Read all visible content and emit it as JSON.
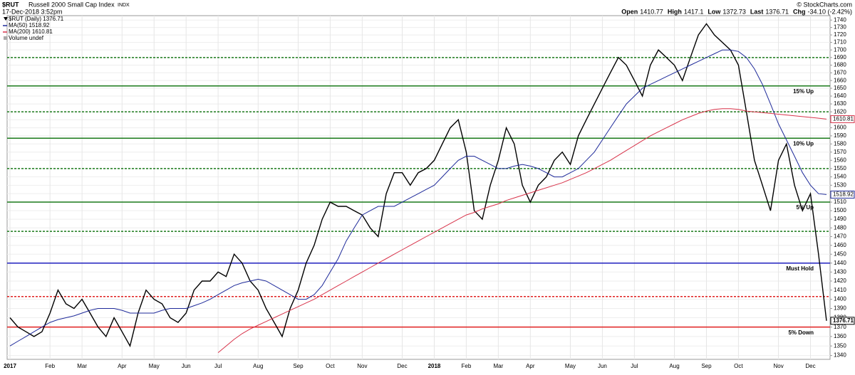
{
  "header": {
    "symbol": "$RUT",
    "name": "Russell 2000 Small Cap Index",
    "exchange": "INDX",
    "date": "17-Dec-2018 3:52pm",
    "source": "© StockCharts.com",
    "quote": [
      {
        "label": "Open",
        "value": 1410.77
      },
      {
        "label": "High",
        "value": 1417.1
      },
      {
        "label": "Low",
        "value": 1372.73
      },
      {
        "label": "Last",
        "value": 1376.71
      },
      {
        "label": "Chg",
        "value": "-34.10 (-2.42%)"
      }
    ]
  },
  "chart_data": {
    "type": "line",
    "log_scale": true,
    "grid": true,
    "legend_extra": "Volume undef",
    "categories": [
      "2017",
      null,
      null,
      null,
      null,
      "Feb",
      null,
      null,
      null,
      "Mar",
      null,
      null,
      null,
      null,
      "Apr",
      null,
      null,
      null,
      "May",
      null,
      null,
      null,
      "Jun",
      null,
      null,
      null,
      "Jul",
      null,
      null,
      null,
      null,
      "Aug",
      null,
      null,
      null,
      null,
      "Sep",
      null,
      null,
      null,
      "Oct",
      null,
      null,
      null,
      "Nov",
      null,
      null,
      null,
      null,
      "Dec",
      null,
      null,
      null,
      "2018",
      null,
      null,
      null,
      "Feb",
      null,
      null,
      null,
      "Mar",
      null,
      null,
      null,
      "Apr",
      null,
      null,
      null,
      null,
      "May",
      null,
      null,
      null,
      "Jun",
      null,
      null,
      null,
      "Jul",
      null,
      null,
      null,
      null,
      "Aug",
      null,
      null,
      null,
      "Sep",
      null,
      null,
      null,
      "Oct",
      null,
      null,
      null,
      null,
      "Nov",
      null,
      null,
      null,
      "Dec",
      null,
      null
    ],
    "series": [
      {
        "name": "$RUT (Daily) 1376.71",
        "color": "#000000",
        "values": [
          1380,
          1370,
          1365,
          1360,
          1365,
          1385,
          1410,
          1395,
          1390,
          1400,
          1385,
          1370,
          1360,
          1380,
          1365,
          1350,
          1385,
          1410,
          1400,
          1395,
          1380,
          1375,
          1385,
          1410,
          1420,
          1420,
          1430,
          1425,
          1450,
          1440,
          1420,
          1410,
          1390,
          1375,
          1360,
          1390,
          1410,
          1440,
          1460,
          1490,
          1510,
          1505,
          1505,
          1500,
          1495,
          1480,
          1470,
          1520,
          1545,
          1545,
          1530,
          1545,
          1550,
          1560,
          1580,
          1600,
          1610,
          1570,
          1500,
          1490,
          1530,
          1560,
          1600,
          1580,
          1530,
          1510,
          1530,
          1540,
          1560,
          1570,
          1555,
          1590,
          1610,
          1630,
          1650,
          1670,
          1690,
          1680,
          1660,
          1640,
          1680,
          1700,
          1690,
          1680,
          1660,
          1690,
          1720,
          1735,
          1720,
          1710,
          1700,
          1680,
          1620,
          1560,
          1530,
          1500,
          1560,
          1580,
          1530,
          1500,
          1520,
          1450,
          1376.71
        ]
      },
      {
        "name": "MA(50) 1518.92",
        "color": "#1e2a9a",
        "values": [
          1350,
          1355,
          1360,
          1365,
          1370,
          1375,
          1378,
          1380,
          1382,
          1385,
          1388,
          1390,
          1390,
          1390,
          1388,
          1385,
          1385,
          1385,
          1385,
          1388,
          1390,
          1390,
          1390,
          1393,
          1396,
          1400,
          1405,
          1410,
          1415,
          1418,
          1420,
          1422,
          1420,
          1415,
          1410,
          1405,
          1400,
          1400,
          1405,
          1415,
          1430,
          1445,
          1465,
          1480,
          1495,
          1500,
          1505,
          1505,
          1505,
          1510,
          1515,
          1520,
          1525,
          1530,
          1540,
          1550,
          1560,
          1565,
          1565,
          1560,
          1555,
          1550,
          1550,
          1553,
          1555,
          1553,
          1550,
          1545,
          1540,
          1540,
          1545,
          1550,
          1560,
          1570,
          1585,
          1600,
          1615,
          1630,
          1640,
          1650,
          1655,
          1660,
          1665,
          1670,
          1675,
          1680,
          1685,
          1690,
          1695,
          1700,
          1700,
          1698,
          1690,
          1675,
          1655,
          1630,
          1605,
          1585,
          1565,
          1545,
          1530,
          1520,
          1518.92
        ]
      },
      {
        "name": "MA(200) 1610.81",
        "color": "#d8334a",
        "values": [
          null,
          null,
          null,
          null,
          null,
          null,
          null,
          null,
          null,
          null,
          null,
          null,
          null,
          null,
          null,
          null,
          null,
          null,
          null,
          null,
          null,
          null,
          null,
          null,
          null,
          null,
          1343,
          1350,
          1357,
          1363,
          1368,
          1372,
          1376,
          1380,
          1384,
          1388,
          1392,
          1396,
          1400,
          1405,
          1410,
          1415,
          1420,
          1425,
          1430,
          1435,
          1440,
          1445,
          1450,
          1455,
          1460,
          1465,
          1470,
          1475,
          1480,
          1485,
          1490,
          1495,
          1498,
          1502,
          1505,
          1508,
          1512,
          1515,
          1518,
          1521,
          1524,
          1527,
          1530,
          1533,
          1537,
          1541,
          1545,
          1550,
          1555,
          1560,
          1566,
          1572,
          1578,
          1584,
          1590,
          1595,
          1600,
          1605,
          1610,
          1614,
          1618,
          1621,
          1623,
          1624,
          1624,
          1623,
          1621,
          1620,
          1619,
          1618,
          1617,
          1616,
          1615,
          1614,
          1613,
          1612,
          1610.81
        ]
      }
    ],
    "hlines": [
      {
        "value": 1690,
        "color": "#1a7a1a",
        "style": "dashed"
      },
      {
        "value": 1653,
        "color": "#1a7a1a",
        "style": "solid",
        "label": "15% Up"
      },
      {
        "value": 1620,
        "color": "#1a7a1a",
        "style": "dashed"
      },
      {
        "value": 1587,
        "color": "#1a7a1a",
        "style": "solid",
        "label": "10% Up"
      },
      {
        "value": 1550,
        "color": "#1a7a1a",
        "style": "dashed"
      },
      {
        "value": 1510,
        "color": "#1a7a1a",
        "style": "solid",
        "label": "5% Up"
      },
      {
        "value": 1476,
        "color": "#1a7a1a",
        "style": "dashed"
      },
      {
        "value": 1440,
        "color": "#1f1fbf",
        "style": "solid",
        "label": "Must Hold"
      },
      {
        "value": 1403,
        "color": "#e02020",
        "style": "dashed"
      },
      {
        "value": 1370,
        "color": "#e02020",
        "style": "solid",
        "label": "5% Down"
      }
    ],
    "ylim": [
      1336,
      1746
    ],
    "yticks": [
      1340,
      1350,
      1360,
      1370,
      1380,
      1390,
      1400,
      1410,
      1420,
      1430,
      1440,
      1450,
      1460,
      1470,
      1480,
      1490,
      1500,
      1510,
      1520,
      1530,
      1540,
      1550,
      1560,
      1570,
      1580,
      1590,
      1600,
      1610,
      1620,
      1630,
      1640,
      1650,
      1660,
      1670,
      1680,
      1690,
      1700,
      1710,
      1720,
      1730,
      1740
    ]
  }
}
